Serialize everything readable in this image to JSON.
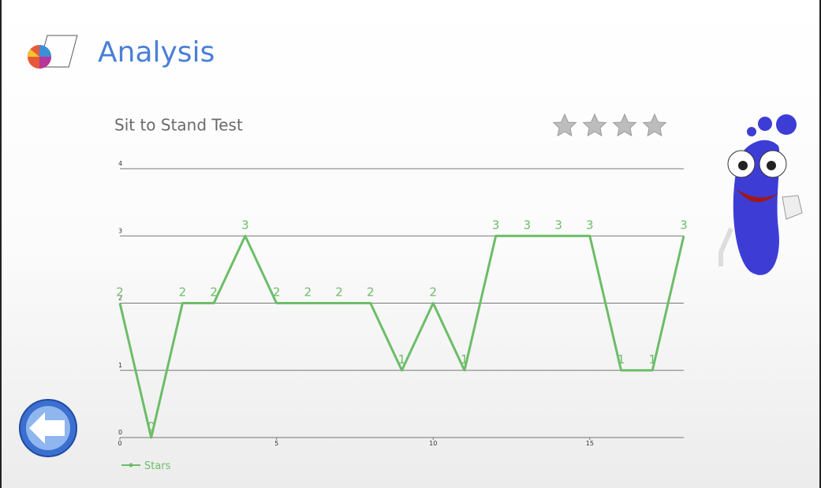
{
  "header": {
    "title": "Analysis"
  },
  "chart_data": {
    "type": "line",
    "title": "Sit to Stand Test",
    "x": [
      0,
      1,
      2,
      3,
      4,
      5,
      6,
      7,
      8,
      9,
      10,
      11,
      12,
      13,
      14,
      15,
      16,
      17,
      18
    ],
    "series": [
      {
        "name": "Stars",
        "color": "#6cbd68",
        "values": [
          2,
          0,
          2,
          2,
          3,
          2,
          2,
          2,
          2,
          1,
          2,
          1,
          3,
          3,
          3,
          3,
          1,
          1,
          3
        ]
      }
    ],
    "xlim": [
      0,
      18
    ],
    "xticks": [
      0,
      5,
      10,
      15
    ],
    "ylim": [
      0,
      4
    ],
    "yticks": [
      0,
      1,
      2,
      3,
      4
    ],
    "grid": true,
    "legend": "bottom-left"
  }
}
